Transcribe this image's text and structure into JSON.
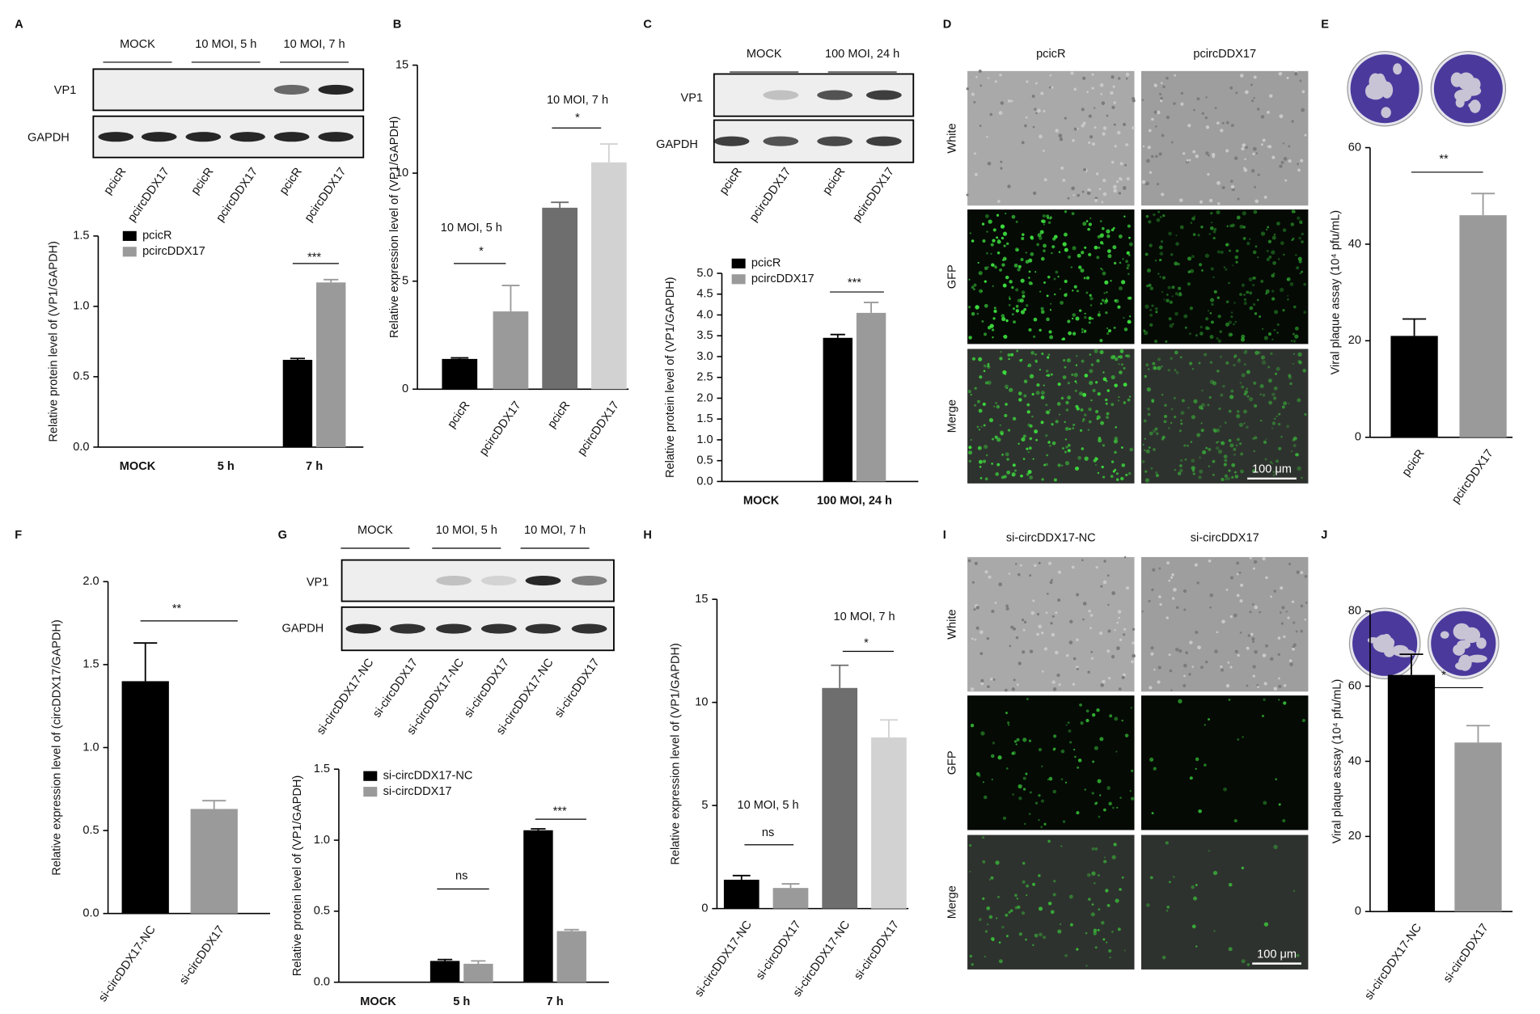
{
  "panels": [
    "A",
    "B",
    "C",
    "D",
    "E",
    "F",
    "G",
    "H",
    "I",
    "J"
  ],
  "blots": [
    {
      "groups": [
        "MOCK",
        "10 MOI, 5 h",
        "10 MOI, 7 h"
      ],
      "rows": [
        "VP1",
        "GAPDH"
      ],
      "lanes": [
        "pcicR",
        "pcircDDX17",
        "pcicR",
        "pcircDDX17",
        "pcicR",
        "pcircDDX17"
      ]
    },
    {
      "groups": [
        "MOCK",
        "100 MOI, 24 h"
      ],
      "rows": [
        "VP1",
        "GAPDH"
      ],
      "lanes": [
        "pcicR",
        "pcircDDX17",
        "pcicR",
        "pcircDDX17"
      ]
    },
    {
      "groups": [
        "MOCK",
        "10 MOI, 5 h",
        "10 MOI, 7 h"
      ],
      "rows": [
        "VP1",
        "GAPDH"
      ],
      "lanes": [
        "si-circDDX17-NC",
        "si-circDDX17",
        "si-circDDX17-NC",
        "si-circDDX17",
        "si-circDDX17-NC",
        "si-circDDX17"
      ]
    }
  ],
  "micrographs": [
    {
      "columns": [
        "pcicR",
        "pcircDDX17"
      ],
      "rows": [
        "White",
        "GFP",
        "Merge"
      ],
      "scale_bar": "100 μm"
    },
    {
      "columns": [
        "si-circDDX17-NC",
        "si-circDDX17"
      ],
      "rows": [
        "White",
        "GFP",
        "Merge"
      ],
      "scale_bar": "100 μm"
    }
  ],
  "chart_data": [
    {
      "type": "bar",
      "ylabel": "Relative protein level of (VP1/GAPDH)",
      "categories": [
        "MOCK",
        "5 h",
        "7 h"
      ],
      "series": [
        {
          "name": "pcicR",
          "color": "#000000",
          "values": [
            0,
            0,
            0.62
          ],
          "errors": [
            null,
            null,
            0.01
          ]
        },
        {
          "name": "pcircDDX17",
          "color": "#9a9a9a",
          "values": [
            0,
            0,
            1.17
          ],
          "errors": [
            null,
            null,
            0.02
          ]
        }
      ],
      "ylim": [
        0,
        1.5
      ],
      "yticks": [
        {
          "value": 0,
          "label": "0.0"
        },
        0.5,
        {
          "value": 1,
          "label": "1.0"
        },
        1.5
      ],
      "annotations": [
        "***"
      ]
    },
    {
      "type": "bar",
      "ylabel": "Relative expression level of (VP1/GAPDH)",
      "categories": [
        "pcicR",
        "pcircDDX17",
        "pcicR",
        "pcircDDX17"
      ],
      "values": [
        1.4,
        3.6,
        8.4,
        10.5
      ],
      "errors": [
        0.05,
        1.2,
        0.25,
        0.85
      ],
      "colors": [
        "#000000",
        "#9a9a9a",
        "#6e6e6e",
        "#d2d2d2"
      ],
      "ylim": [
        0,
        15
      ],
      "yticks": [
        0,
        5,
        10,
        15
      ],
      "annotations": [
        "10 MOI, 5 h",
        "*",
        "10 MOI, 7 h",
        "*"
      ]
    },
    {
      "type": "bar",
      "ylabel": "Relative protein level of (VP1/GAPDH)",
      "categories": [
        "MOCK",
        "100 MOI, 24 h"
      ],
      "series": [
        {
          "name": "pcicR",
          "color": "#000000",
          "values": [
            0,
            3.45
          ],
          "errors": [
            null,
            0.08
          ]
        },
        {
          "name": "pcircDDX17",
          "color": "#9a9a9a",
          "values": [
            0,
            4.05
          ],
          "errors": [
            null,
            0.25
          ]
        }
      ],
      "ylim": [
        0,
        5
      ],
      "yticks": [
        {
          "value": 0,
          "label": "0.0"
        },
        0.5,
        {
          "value": 1,
          "label": "1.0"
        },
        1.5,
        {
          "value": 2,
          "label": "2.0"
        },
        2.5,
        {
          "value": 3,
          "label": "3.0"
        },
        3.5,
        {
          "value": 4,
          "label": "4.0"
        },
        4.5,
        {
          "value": 5,
          "label": "5.0"
        }
      ],
      "annotations": [
        "***"
      ]
    },
    {
      "type": "bar",
      "ylabel": "Viral plaque assay (10⁴ pfu/mL)",
      "categories": [
        "pcicR",
        "pcircDDX17"
      ],
      "values": [
        21,
        46
      ],
      "errors": [
        3.5,
        4.5
      ],
      "colors": [
        "#000000",
        "#9a9a9a"
      ],
      "ylim": [
        0,
        60
      ],
      "yticks": [
        0,
        20,
        40,
        60
      ],
      "annotations": [
        "**"
      ]
    },
    {
      "type": "bar",
      "ylabel": "Relative expression level of (circDDX17/GAPDH)",
      "categories": [
        "si-circDDX17-NC",
        "si-circDDX17"
      ],
      "values": [
        1.4,
        0.63
      ],
      "errors": [
        0.23,
        0.05
      ],
      "colors": [
        "#000000",
        "#9a9a9a"
      ],
      "ylim": [
        0,
        2
      ],
      "yticks": [
        {
          "value": 0,
          "label": "0.0"
        },
        0.5,
        {
          "value": 1,
          "label": "1.0"
        },
        1.5,
        {
          "value": 2,
          "label": "2.0"
        }
      ],
      "annotations": [
        "**"
      ]
    },
    {
      "type": "bar",
      "ylabel": "Relative protein level of (VP1/GAPDH)",
      "categories": [
        "MOCK",
        "5 h",
        "7 h"
      ],
      "series": [
        {
          "name": "si-circDDX17-NC",
          "color": "#000000",
          "values": [
            0,
            0.15,
            1.07
          ],
          "errors": [
            null,
            0.01,
            0.01
          ]
        },
        {
          "name": "si-circDDX17",
          "color": "#9a9a9a",
          "values": [
            0,
            0.13,
            0.36
          ],
          "errors": [
            null,
            0.02,
            0.01
          ]
        }
      ],
      "ylim": [
        0,
        1.5
      ],
      "yticks": [
        {
          "value": 0,
          "label": "0.0"
        },
        0.5,
        {
          "value": 1,
          "label": "1.0"
        },
        1.5
      ],
      "annotations": [
        "ns",
        "***"
      ]
    },
    {
      "type": "bar",
      "ylabel": "Relative expression level of (VP1/GAPDH)",
      "categories": [
        "si-circDDX17-NC",
        "si-circDDX17",
        "si-circDDX17-NC",
        "si-circDDX17"
      ],
      "values": [
        1.4,
        1.0,
        10.7,
        8.3
      ],
      "errors": [
        0.2,
        0.2,
        1.1,
        0.85
      ],
      "colors": [
        "#000000",
        "#9a9a9a",
        "#6e6e6e",
        "#d2d2d2"
      ],
      "ylim": [
        0,
        15
      ],
      "yticks": [
        0,
        5,
        10,
        15
      ],
      "annotations": [
        "10 MOI, 5 h",
        "ns",
        "10 MOI, 7 h",
        "*"
      ]
    },
    {
      "type": "bar",
      "ylabel": "Viral plaque assay (10⁴ pfu/mL)",
      "categories": [
        "si-circDDX17-NC",
        "si-circDDX17"
      ],
      "values": [
        63,
        45
      ],
      "errors": [
        5.5,
        4.5
      ],
      "colors": [
        "#000000",
        "#9a9a9a"
      ],
      "ylim": [
        0,
        80
      ],
      "yticks": [
        0,
        20,
        40,
        60,
        80
      ],
      "annotations": [
        "*"
      ]
    }
  ]
}
